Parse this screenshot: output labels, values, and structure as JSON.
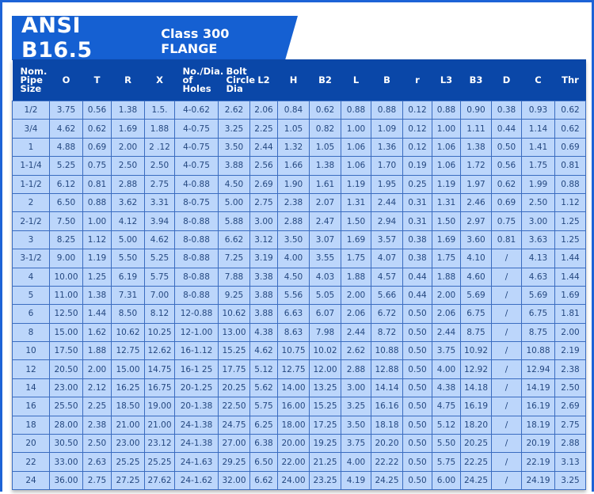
{
  "title": {
    "main": "ANSI B16.5",
    "sub": "Class 300 FLANGE"
  },
  "colors": {
    "accent": "#1560d2",
    "header": "#0a47a8",
    "cell": "#bcd6fb"
  },
  "table": {
    "headers": [
      "Nom. Pipe Size",
      "O",
      "T",
      "R",
      "X",
      "No./Dia. of Holes",
      "Bolt Circle Dia",
      "L2",
      "H",
      "B2",
      "L",
      "B",
      "r",
      "L3",
      "B3",
      "D",
      "C",
      "Thr"
    ],
    "rows": [
      [
        "1/2",
        "3.75",
        "0.56",
        "1.38",
        "1.5.",
        "4-0.62",
        "2.62",
        "2.06",
        "0.84",
        "0.62",
        "0.88",
        "0.88",
        "0.12",
        "0.88",
        "0.90",
        "0.38",
        "0.93",
        "0.62"
      ],
      [
        "3/4",
        "4.62",
        "0.62",
        "1.69",
        "1.88",
        "4-0.75",
        "3.25",
        "2.25",
        "1.05",
        "0.82",
        "1.00",
        "1.09",
        "0.12",
        "1.00",
        "1.11",
        "0.44",
        "1.14",
        "0.62"
      ],
      [
        "1",
        "4.88",
        "0.69",
        "2.00",
        "2 .12",
        "4-0.75",
        "3.50",
        "2.44",
        "1.32",
        "1.05",
        "1.06",
        "1.36",
        "0.12",
        "1.06",
        "1.38",
        "0.50",
        "1.41",
        "0.69"
      ],
      [
        "1-1/4",
        "5.25",
        "0.75",
        "2.50",
        "2.50",
        "4-0.75",
        "3.88",
        "2.56",
        "1.66",
        "1.38",
        "1.06",
        "1.70",
        "0.19",
        "1.06",
        "1.72",
        "0.56",
        "1.75",
        "0.81"
      ],
      [
        "1-1/2",
        "6.12",
        "0.81",
        "2.88",
        "2.75",
        "4-0.88",
        "4.50",
        "2.69",
        "1.90",
        "1.61",
        "1.19",
        "1.95",
        "0.25",
        "1.19",
        "1.97",
        "0.62",
        "1.99",
        "0.88"
      ],
      [
        "2",
        "6.50",
        "0.88",
        "3.62",
        "3.31",
        "8-0.75",
        "5.00",
        "2.75",
        "2.38",
        "2.07",
        "1.31",
        "2.44",
        "0.31",
        "1.31",
        "2.46",
        "0.69",
        "2.50",
        "1.12"
      ],
      [
        "2-1/2",
        "7.50",
        "1.00",
        "4.12",
        "3.94",
        "8-0.88",
        "5.88",
        "3.00",
        "2.88",
        "2.47",
        "1.50",
        "2.94",
        "0.31",
        "1.50",
        "2.97",
        "0.75",
        "3.00",
        "1.25"
      ],
      [
        "3",
        "8.25",
        "1.12",
        "5.00",
        "4.62",
        "8-0.88",
        "6.62",
        "3.12",
        "3.50",
        "3.07",
        "1.69",
        "3.57",
        "0.38",
        "1.69",
        "3.60",
        "0.81",
        "3.63",
        "1.25"
      ],
      [
        "3-1/2",
        "9.00",
        "1.19",
        "5.50",
        "5.25",
        "8-0.88",
        "7.25",
        "3.19",
        "4.00",
        "3.55",
        "1.75",
        "4.07",
        "0.38",
        "1.75",
        "4.10",
        "/",
        "4.13",
        "1.44"
      ],
      [
        "4",
        "10.00",
        "1.25",
        "6.19",
        "5.75",
        "8-0.88",
        "7.88",
        "3.38",
        "4.50",
        "4.03",
        "1.88",
        "4.57",
        "0.44",
        "1.88",
        "4.60",
        "/",
        "4.63",
        "1.44"
      ],
      [
        "5",
        "11.00",
        "1.38",
        "7.31",
        "7.00",
        "8-0.88",
        "9.25",
        "3.88",
        "5.56",
        "5.05",
        "2.00",
        "5.66",
        "0.44",
        "2.00",
        "5.69",
        "/",
        "5.69",
        "1.69"
      ],
      [
        "6",
        "12.50",
        "1.44",
        "8.50",
        "8.12",
        "12-0.88",
        "10.62",
        "3.88",
        "6.63",
        "6.07",
        "2.06",
        "6.72",
        "0.50",
        "2.06",
        "6.75",
        "/",
        "6.75",
        "1.81"
      ],
      [
        "8",
        "15.00",
        "1.62",
        "10.62",
        "10.25",
        "12-1.00",
        "13.00",
        "4.38",
        "8.63",
        "7.98",
        "2.44",
        "8.72",
        "0.50",
        "2.44",
        "8.75",
        "/",
        "8.75",
        "2.00"
      ],
      [
        "10",
        "17.50",
        "1.88",
        "12.75",
        "12.62",
        "16-1.12",
        "15.25",
        "4.62",
        "10.75",
        "10.02",
        "2.62",
        "10.88",
        "0.50",
        "3.75",
        "10.92",
        "/",
        "10.88",
        "2.19"
      ],
      [
        "12",
        "20.50",
        "2.00",
        "15.00",
        "14.75",
        "16-1 25",
        "17.75",
        "5.12",
        "12.75",
        "12.00",
        "2.88",
        "12.88",
        "0.50",
        "4.00",
        "12.92",
        "/",
        "12.94",
        "2.38"
      ],
      [
        "14",
        "23.00",
        "2.12",
        "16.25",
        "16.75",
        "20-1.25",
        "20.25",
        "5.62",
        "14.00",
        "13.25",
        "3.00",
        "14.14",
        "0.50",
        "4.38",
        "14.18",
        "/",
        "14.19",
        "2.50"
      ],
      [
        "16",
        "25.50",
        "2.25",
        "18.50",
        "19.00",
        "20-1.38",
        "22.50",
        "5.75",
        "16.00",
        "15.25",
        "3.25",
        "16.16",
        "0.50",
        "4.75",
        "16.19",
        "/",
        "16.19",
        "2.69"
      ],
      [
        "18",
        "28.00",
        "2.38",
        "21.00",
        "21.00",
        "24-1.38",
        "24.75",
        "6.25",
        "18.00",
        "17.25",
        "3.50",
        "18.18",
        "0.50",
        "5.12",
        "18.20",
        "/",
        "18.19",
        "2.75"
      ],
      [
        "20",
        "30.50",
        "2.50",
        "23.00",
        "23.12",
        "24-1.38",
        "27.00",
        "6.38",
        "20.00",
        "19.25",
        "3.75",
        "20.20",
        "0.50",
        "5.50",
        "20.25",
        "/",
        "20.19",
        "2.88"
      ],
      [
        "22",
        "33.00",
        "2.63",
        "25.25",
        "25.25",
        "24-1.63",
        "29.25",
        "6.50",
        "22.00",
        "21.25",
        "4.00",
        "22.22",
        "0.50",
        "5.75",
        "22.25",
        "/",
        "22.19",
        "3.13"
      ],
      [
        "24",
        "36.00",
        "2.75",
        "27.25",
        "27.62",
        "24-1.62",
        "32.00",
        "6.62",
        "24.00",
        "23.25",
        "4.19",
        "24.25",
        "0.50",
        "6.00",
        "24.25",
        "/",
        "24.19",
        "3.25"
      ]
    ]
  }
}
